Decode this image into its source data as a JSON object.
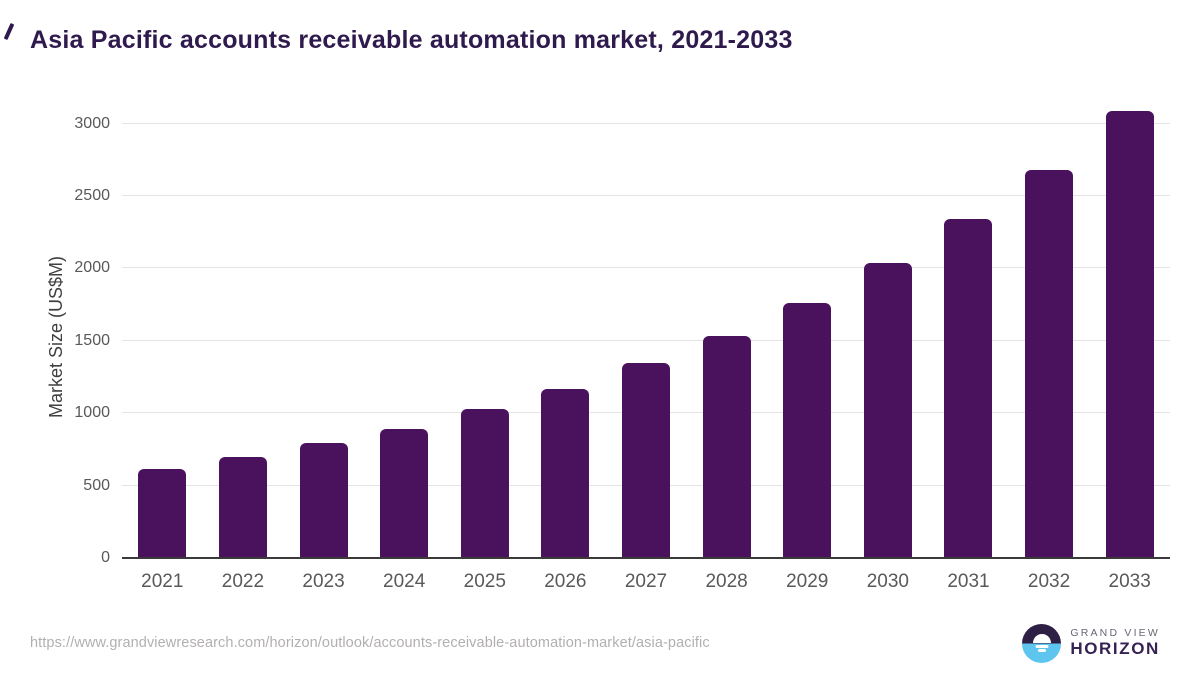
{
  "title": "Asia Pacific accounts receivable automation market, 2021-2033",
  "chart_data": {
    "type": "bar",
    "categories": [
      "2021",
      "2022",
      "2023",
      "2024",
      "2025",
      "2026",
      "2027",
      "2028",
      "2029",
      "2030",
      "2031",
      "2032",
      "2033"
    ],
    "values": [
      610,
      693,
      787,
      887,
      1019,
      1163,
      1337,
      1526,
      1757,
      2030,
      2332,
      2676,
      3079
    ],
    "title": "Asia Pacific accounts receivable automation market, 2021-2033",
    "xlabel": "",
    "ylabel": "Market Size (US$M)",
    "y_ticks": [
      0,
      500,
      1000,
      1500,
      2000,
      2500,
      3000
    ],
    "ylim": [
      0,
      3200
    ],
    "grid": true,
    "legend": false
  },
  "colors": {
    "bar": "#4a125c",
    "title": "#2e1a4d",
    "grid": "#e4e4e4",
    "axis_line": "#3a3a3a",
    "tick_label": "#58595b",
    "y_axis_title": "#3f3f3f",
    "url_text": "#b2afaf",
    "logo_dark": "#2e2045",
    "logo_blue": "#5ec5ef",
    "logo_brand_top": "#6c6575",
    "logo_brand_bottom": "#372254"
  },
  "footer": {
    "source_url": "https://www.grandviewresearch.com/horizon/outlook/accounts-receivable-automation-market/asia-pacific",
    "logo": {
      "brand_top": "GRAND VIEW",
      "brand_bottom": "HORIZON"
    }
  }
}
